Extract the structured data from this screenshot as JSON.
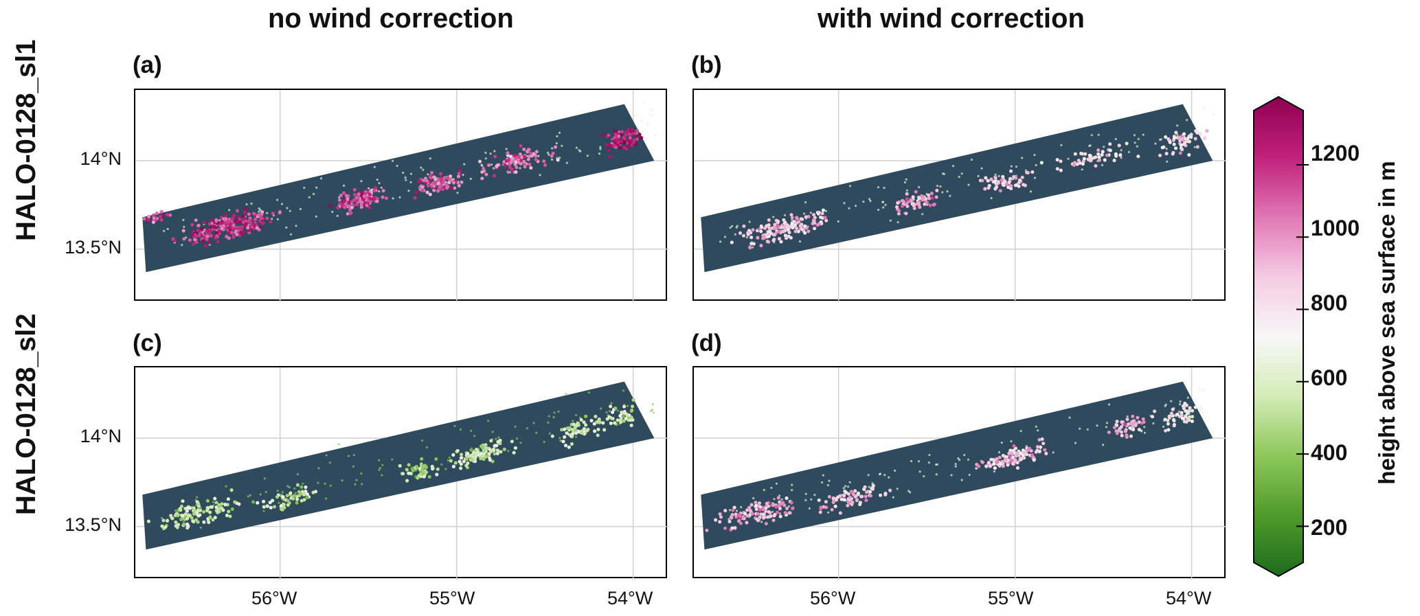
{
  "chart_data": {
    "type": "scatter",
    "column_titles": [
      "no wind correction",
      "with wind correction"
    ],
    "row_titles": [
      "HALO-0128_sl1",
      "HALO-0128_sl2"
    ],
    "panels": [
      {
        "label": "(a)",
        "row": 0,
        "col": 0,
        "clusters": [
          {
            "lon": -56.3,
            "lat": 13.62,
            "height": 1150,
            "n": 220,
            "spread_lon": 0.22,
            "spread_lat": 0.06
          },
          {
            "lon": -55.55,
            "lat": 13.78,
            "height": 1120,
            "n": 110,
            "spread_lon": 0.12,
            "spread_lat": 0.05
          },
          {
            "lon": -55.1,
            "lat": 13.87,
            "height": 1080,
            "n": 90,
            "spread_lon": 0.14,
            "spread_lat": 0.05
          },
          {
            "lon": -54.65,
            "lat": 14.0,
            "height": 1050,
            "n": 90,
            "spread_lon": 0.18,
            "spread_lat": 0.05
          },
          {
            "lon": -54.05,
            "lat": 14.12,
            "height": 1200,
            "n": 80,
            "spread_lon": 0.09,
            "spread_lat": 0.06
          },
          {
            "lon": -56.7,
            "lat": 13.68,
            "height": 1100,
            "n": 20,
            "spread_lon": 0.05,
            "spread_lat": 0.03
          }
        ]
      },
      {
        "label": "(b)",
        "row": 0,
        "col": 1,
        "clusters": [
          {
            "lon": -56.3,
            "lat": 13.62,
            "height": 880,
            "n": 150,
            "spread_lon": 0.22,
            "spread_lat": 0.06
          },
          {
            "lon": -55.55,
            "lat": 13.77,
            "height": 930,
            "n": 60,
            "spread_lon": 0.12,
            "spread_lat": 0.05
          },
          {
            "lon": -55.05,
            "lat": 13.88,
            "height": 880,
            "n": 55,
            "spread_lon": 0.12,
            "spread_lat": 0.05
          },
          {
            "lon": -54.55,
            "lat": 14.02,
            "height": 800,
            "n": 50,
            "spread_lon": 0.18,
            "spread_lat": 0.05
          },
          {
            "lon": -54.05,
            "lat": 14.1,
            "height": 820,
            "n": 50,
            "spread_lon": 0.1,
            "spread_lat": 0.06
          }
        ]
      },
      {
        "label": "(c)",
        "row": 1,
        "col": 0,
        "clusters": [
          {
            "lon": -56.45,
            "lat": 13.58,
            "height": 560,
            "n": 120,
            "spread_lon": 0.2,
            "spread_lat": 0.06
          },
          {
            "lon": -55.95,
            "lat": 13.66,
            "height": 540,
            "n": 60,
            "spread_lon": 0.16,
            "spread_lat": 0.05
          },
          {
            "lon": -55.2,
            "lat": 13.82,
            "height": 520,
            "n": 50,
            "spread_lon": 0.12,
            "spread_lat": 0.05
          },
          {
            "lon": -54.85,
            "lat": 13.92,
            "height": 570,
            "n": 110,
            "spread_lon": 0.14,
            "spread_lat": 0.05
          },
          {
            "lon": -54.3,
            "lat": 14.05,
            "height": 560,
            "n": 60,
            "spread_lon": 0.12,
            "spread_lat": 0.06
          },
          {
            "lon": -54.05,
            "lat": 14.12,
            "height": 580,
            "n": 40,
            "spread_lon": 0.08,
            "spread_lat": 0.06
          }
        ]
      },
      {
        "label": "(d)",
        "row": 1,
        "col": 1,
        "clusters": [
          {
            "lon": -56.45,
            "lat": 13.58,
            "height": 940,
            "n": 110,
            "spread_lon": 0.2,
            "spread_lat": 0.06
          },
          {
            "lon": -55.95,
            "lat": 13.66,
            "height": 880,
            "n": 70,
            "spread_lon": 0.16,
            "spread_lat": 0.05
          },
          {
            "lon": -55.0,
            "lat": 13.9,
            "height": 860,
            "n": 110,
            "spread_lon": 0.16,
            "spread_lat": 0.05
          },
          {
            "lon": -54.35,
            "lat": 14.07,
            "height": 900,
            "n": 50,
            "spread_lon": 0.1,
            "spread_lat": 0.05
          },
          {
            "lon": -54.05,
            "lat": 14.12,
            "height": 760,
            "n": 45,
            "spread_lon": 0.08,
            "spread_lat": 0.06
          }
        ]
      }
    ],
    "swath": {
      "corners": [
        {
          "lon": -56.78,
          "lat": 13.68
        },
        {
          "lon": -54.05,
          "lat": 14.32
        },
        {
          "lon": -53.88,
          "lat": 14.0
        },
        {
          "lon": -56.76,
          "lat": 13.37
        }
      ],
      "color": "#2f4a5c"
    },
    "xaxis": {
      "range": [
        -56.82,
        -53.8
      ],
      "ticks": [
        -56,
        -55,
        -54
      ],
      "tick_labels": [
        "56°W",
        "55°W",
        "54°W"
      ]
    },
    "yaxis": {
      "range": [
        13.2,
        14.4
      ],
      "ticks": [
        13.5,
        14
      ],
      "tick_labels": [
        "13.5°N",
        "14°N"
      ]
    },
    "grid": true,
    "colorbar": {
      "label": "height above sea surface in m",
      "range": [
        100,
        1350
      ],
      "ticks": [
        200,
        400,
        600,
        800,
        1000,
        1200
      ],
      "tick_labels": [
        "200",
        "400",
        "600",
        "800",
        "1000",
        "1200"
      ],
      "extend": "both",
      "colors": [
        "#1e6b1e",
        "#4e9a2a",
        "#8cc75a",
        "#d4ecb6",
        "#f7f7f7",
        "#f5cbe3",
        "#df77b4",
        "#c1207b",
        "#8e0152"
      ]
    }
  }
}
